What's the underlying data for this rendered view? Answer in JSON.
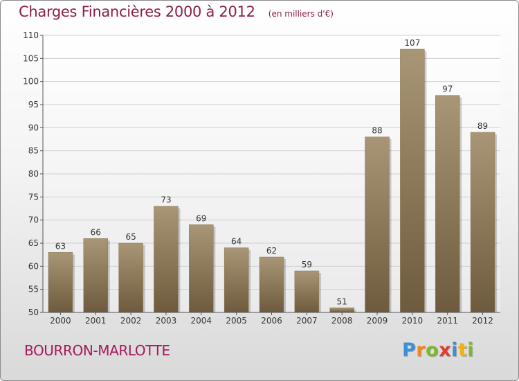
{
  "header": {
    "title": "Charges Financières 2000 à 2012",
    "unit": "(en milliers d'€)"
  },
  "footer": {
    "commune": "BOURRON-MARLOTTE",
    "brand": "Proxiti",
    "brand_letters": [
      {
        "ch": "P",
        "color": "#3a8fd6"
      },
      {
        "ch": "r",
        "color": "#f08a1c"
      },
      {
        "ch": "o",
        "color": "#7cb82f"
      },
      {
        "ch": "x",
        "color": "#e23a2e"
      },
      {
        "ch": "i",
        "color": "#3a8fd6"
      },
      {
        "ch": "t",
        "color": "#f0b21c"
      },
      {
        "ch": "i",
        "color": "#7cb82f"
      }
    ]
  },
  "chart_data": {
    "type": "bar",
    "categories": [
      "2000",
      "2001",
      "2002",
      "2003",
      "2004",
      "2005",
      "2006",
      "2007",
      "2008",
      "2009",
      "2010",
      "2011",
      "2012"
    ],
    "values": [
      63,
      66,
      65,
      73,
      69,
      64,
      62,
      59,
      51,
      88,
      107,
      97,
      89
    ],
    "ylim": [
      50,
      110
    ],
    "yticks": [
      50,
      55,
      60,
      65,
      70,
      75,
      80,
      85,
      90,
      95,
      100,
      105,
      110
    ],
    "grid": true,
    "bar_color_top": "#a89676",
    "bar_color_bottom": "#6e5b3d",
    "title_color": "#8c1d48",
    "commune_color": "#a3195b"
  }
}
